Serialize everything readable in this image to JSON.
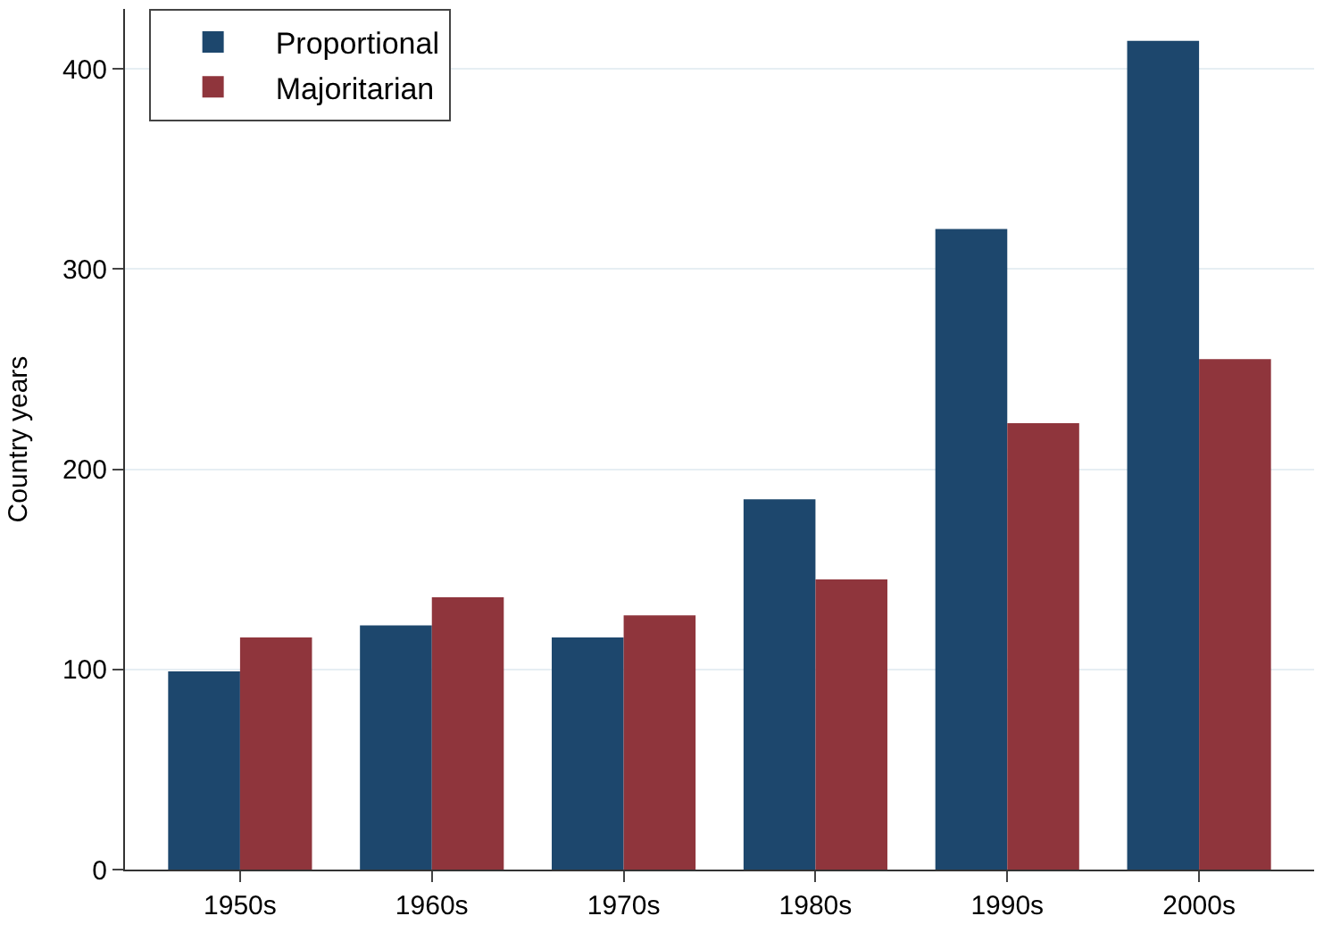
{
  "chart_data": {
    "type": "bar",
    "ylabel": "Country years",
    "categories": [
      "1950s",
      "1960s",
      "1970s",
      "1980s",
      "1990s",
      "2000s"
    ],
    "series": [
      {
        "name": "Proportional",
        "color": "#1d476d",
        "values": [
          99,
          122,
          116,
          185,
          320,
          414
        ]
      },
      {
        "name": "Majoritarian",
        "color": "#8f353c",
        "values": [
          116,
          136,
          127,
          145,
          223,
          255
        ]
      }
    ],
    "ylim": [
      0,
      430
    ],
    "yticks": [
      0,
      100,
      200,
      300,
      400
    ],
    "grid": "y",
    "legend": "top left"
  }
}
